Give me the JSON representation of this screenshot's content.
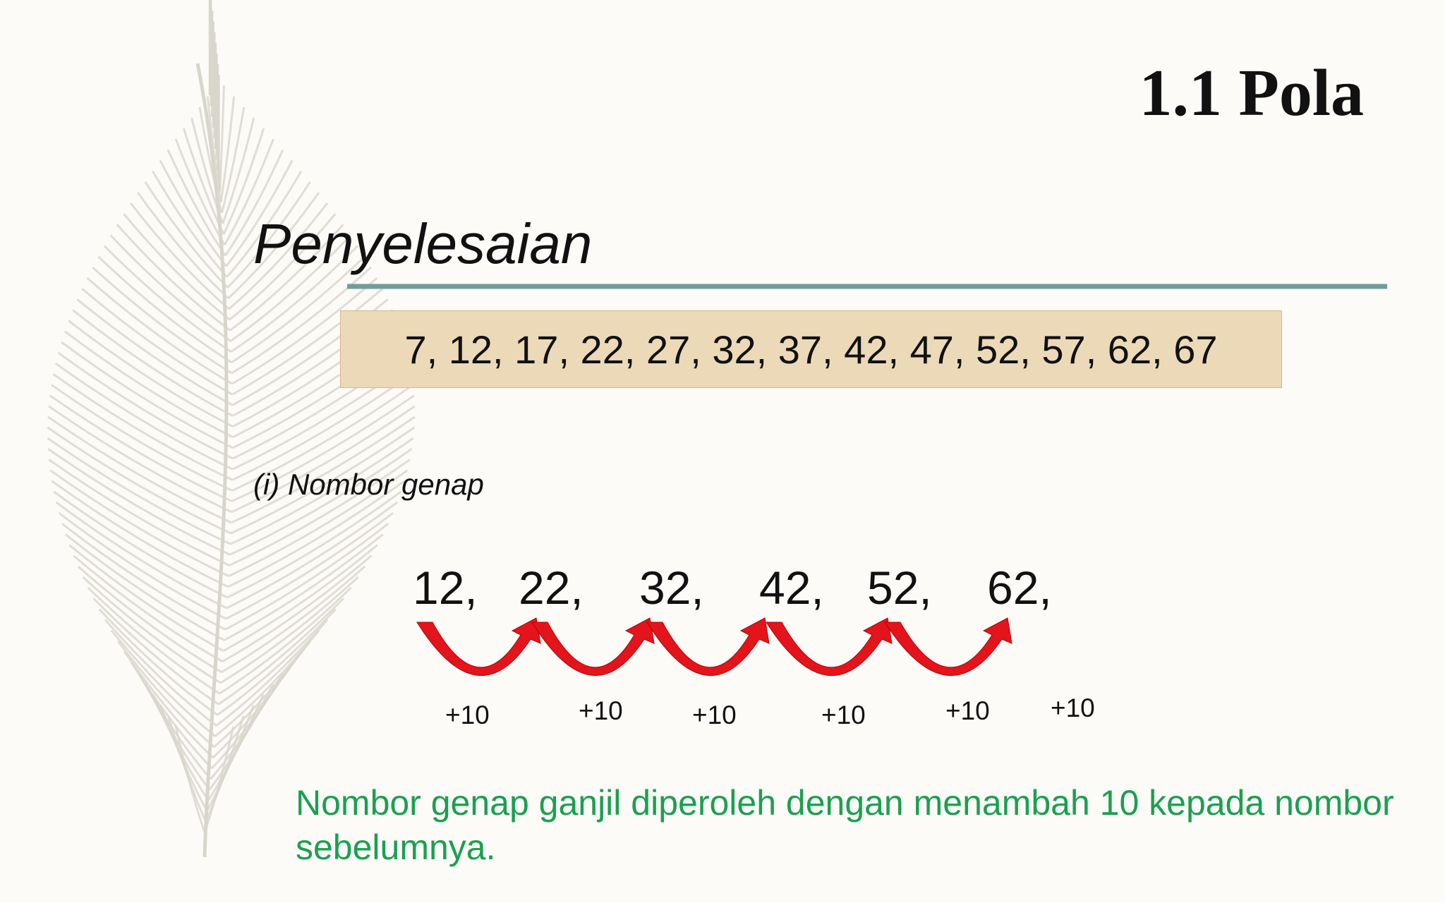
{
  "header": {
    "title": "1.1 Pola"
  },
  "heading": "Penyelesaian",
  "sequence": "7, 12, 17, 22, 27, 32, 37, 42, 47, 52, 57, 62, 67",
  "subheading": "(i) Nombor genap",
  "even_numbers": [
    "12,",
    "22,",
    "32,",
    "42,",
    "52,",
    "62,"
  ],
  "increments": [
    "+10",
    "+10",
    "+10",
    "+10",
    "+10",
    "+10"
  ],
  "note": "Nombor genap ganjil diperoleh dengan menambah 10 kepada nombor sebelumnya."
}
